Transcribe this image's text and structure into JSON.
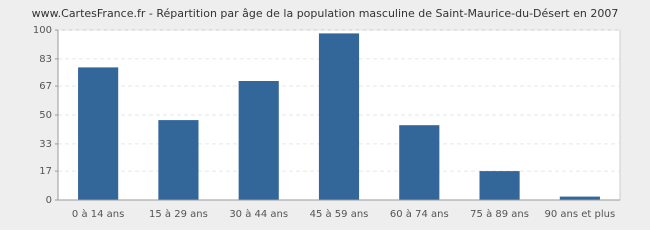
{
  "chart_data": {
    "type": "bar",
    "title": "www.CartesFrance.fr - Répartition par âge de la population masculine de Saint-Maurice-du-Désert en 2007",
    "categories": [
      "0 à 14 ans",
      "15 à 29 ans",
      "30 à 44 ans",
      "45 à 59 ans",
      "60 à 74 ans",
      "75 à 89 ans",
      "90 ans et plus"
    ],
    "values": [
      78,
      47,
      70,
      98,
      44,
      17,
      2
    ],
    "color": "#336699",
    "ylim": [
      0,
      100
    ],
    "yticks": [
      0,
      17,
      33,
      50,
      67,
      83,
      100
    ],
    "grid": true
  }
}
